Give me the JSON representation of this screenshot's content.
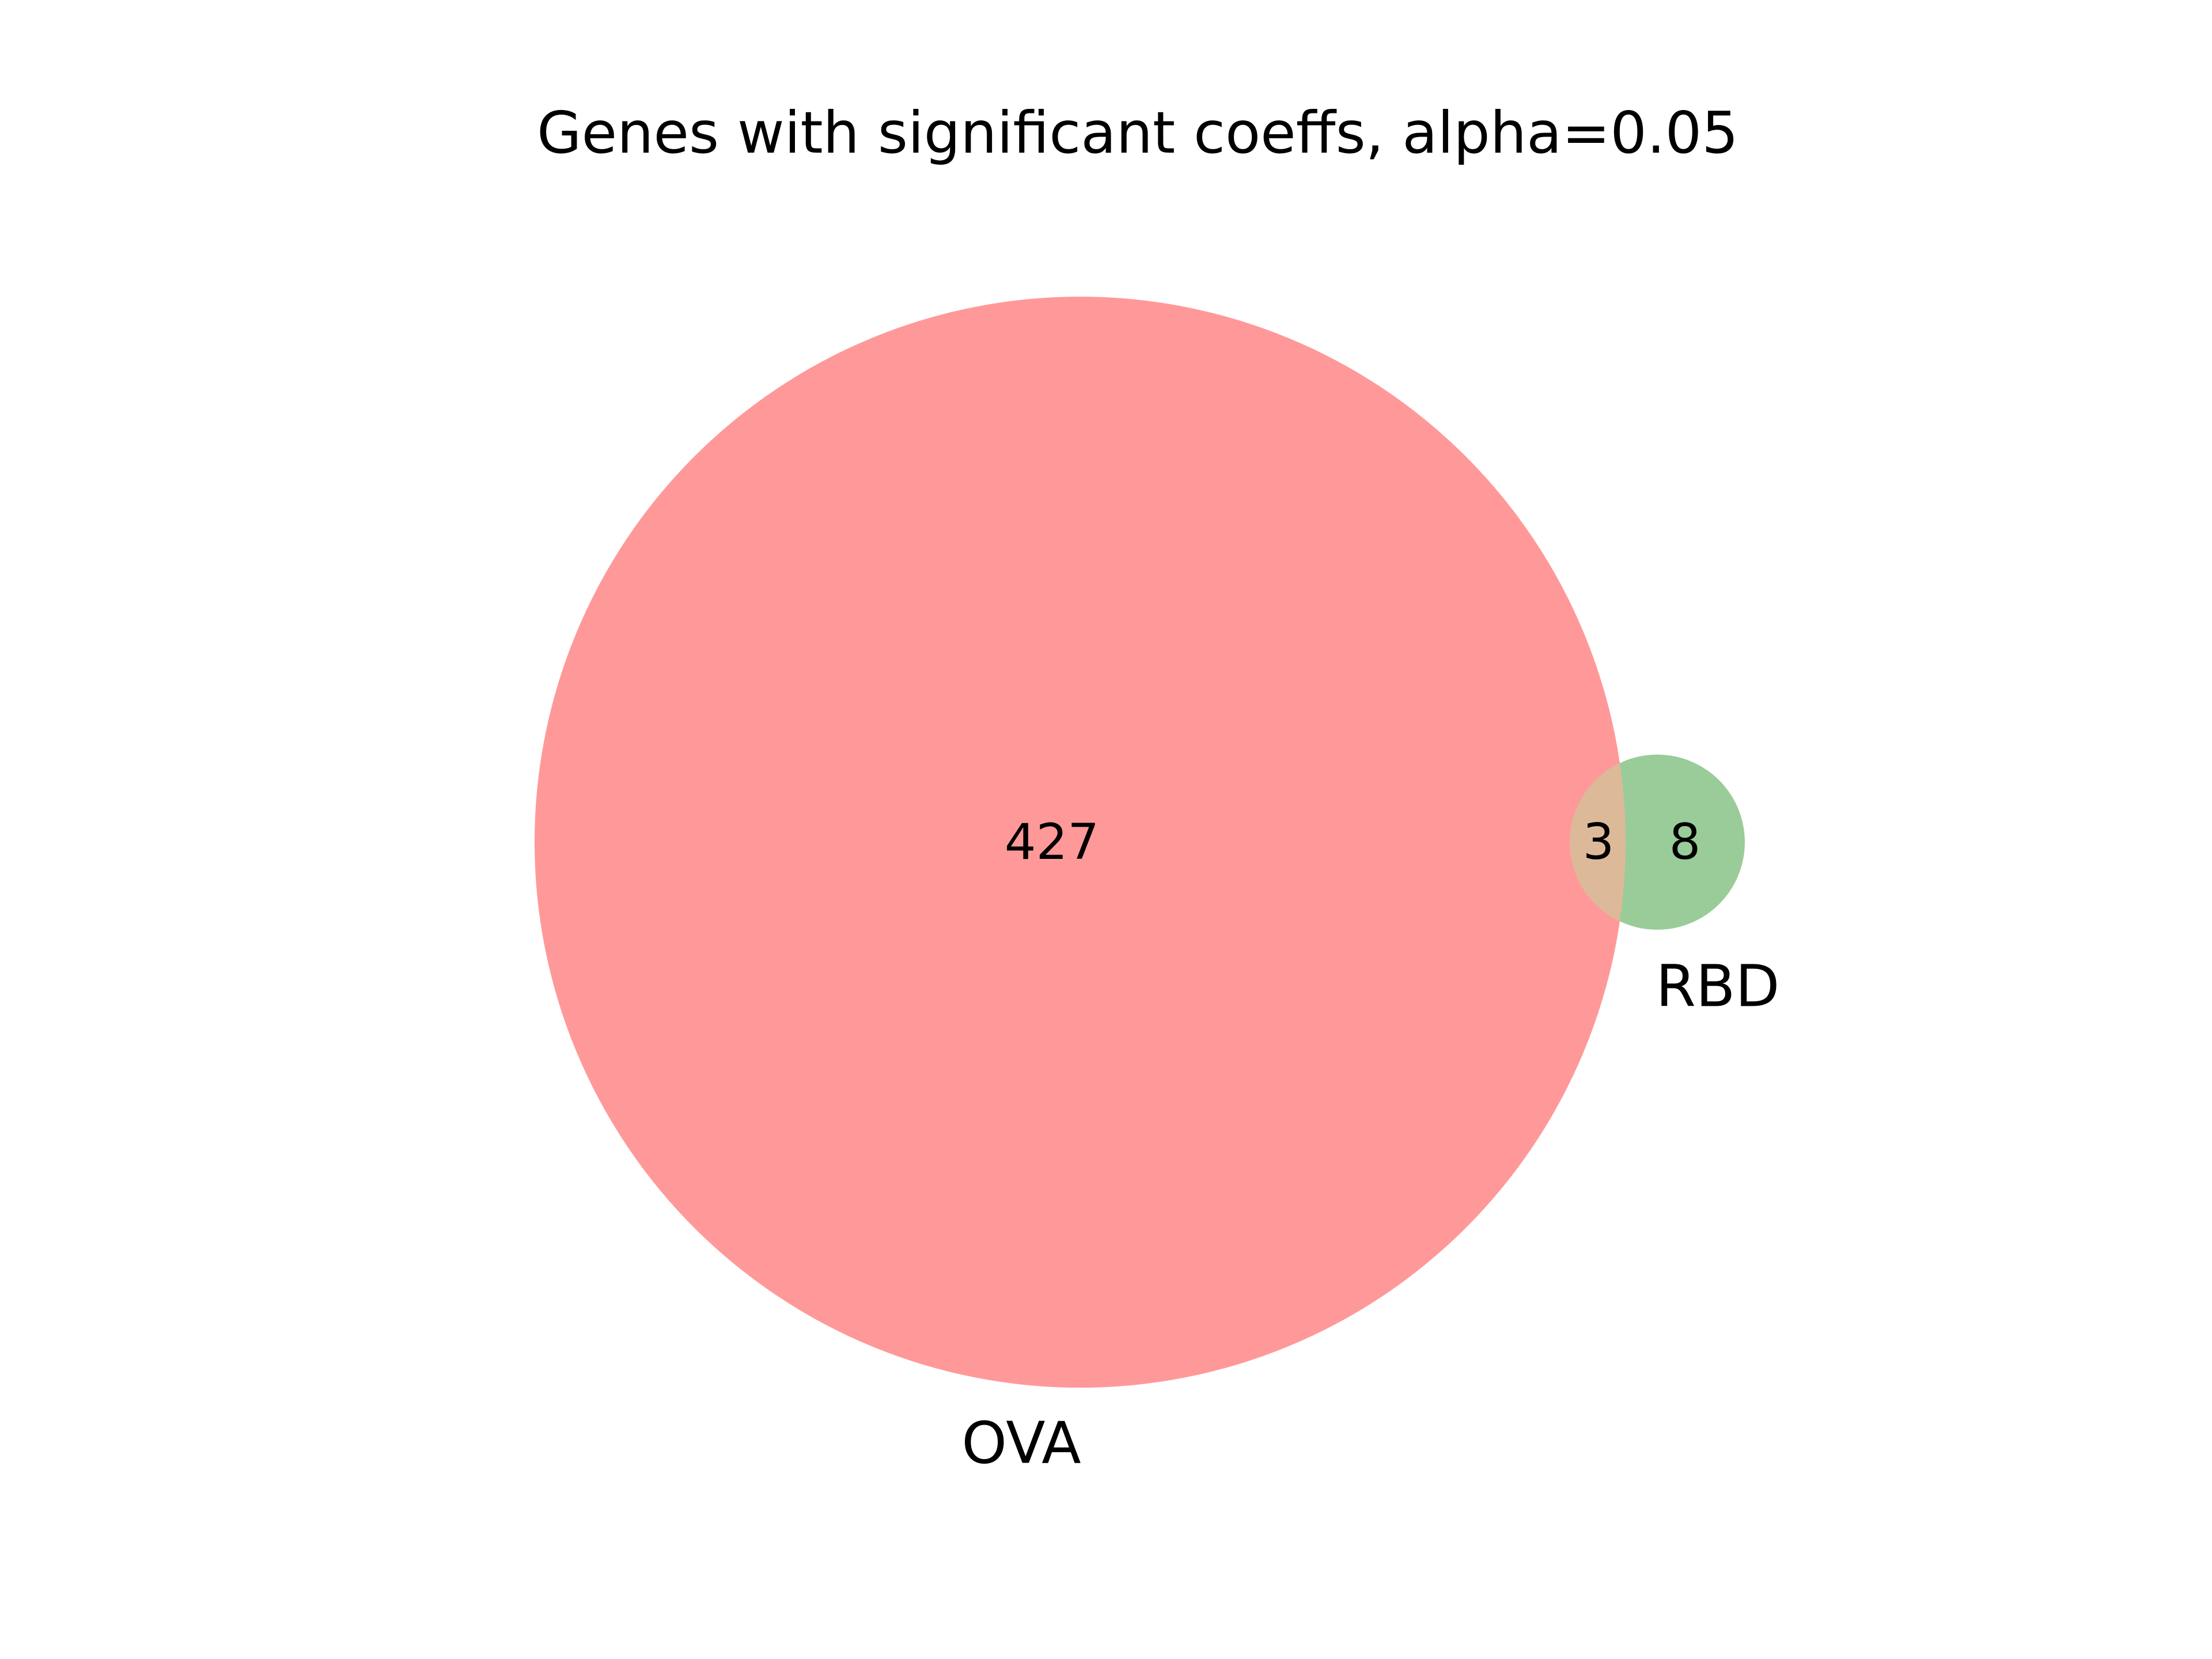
{
  "figure": {
    "title": "Genes with significant coeffs, alpha=0.05"
  },
  "venn": {
    "sets": [
      {
        "label": "OVA",
        "only_count": "427",
        "color": "#ff9999"
      },
      {
        "label": "RBD",
        "only_count": "8",
        "color": "#99cc99"
      }
    ],
    "intersection": {
      "count": "3",
      "color": "#dcba99"
    }
  }
}
